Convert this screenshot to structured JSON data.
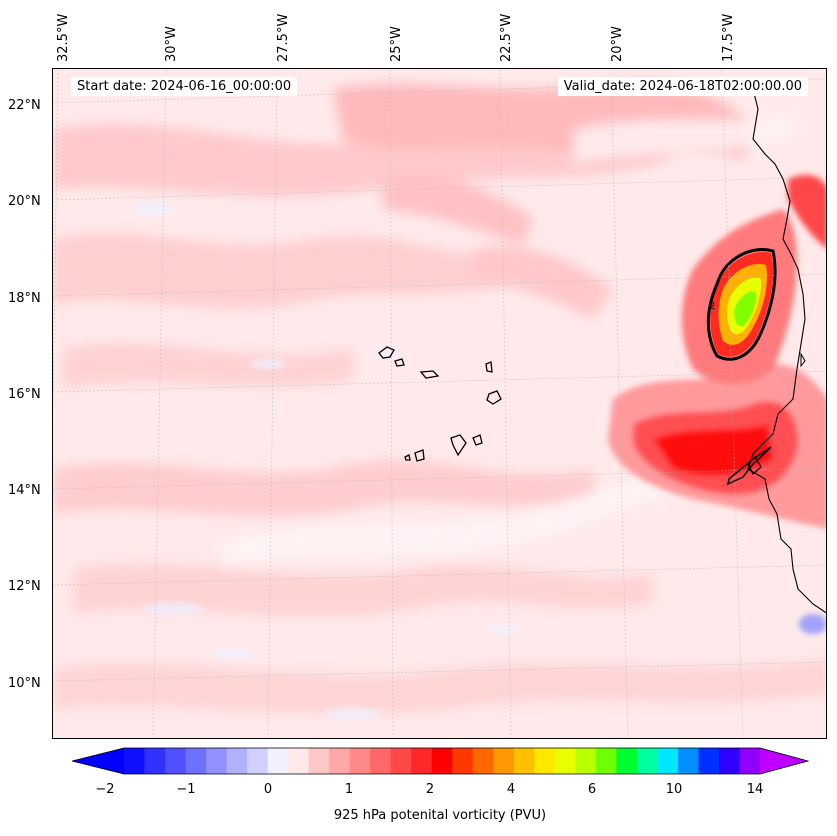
{
  "map": {
    "lon_labels": [
      "32.5°W",
      "30°W",
      "27.5°W",
      "25°W",
      "22.5°W",
      "20°W",
      "17.5°W"
    ],
    "lat_labels": [
      "22°N",
      "20°N",
      "18°N",
      "16°N",
      "14°N",
      "12°N",
      "10°N"
    ],
    "start_date": "Start date: 2024-06-16_00:00:00",
    "valid_date": "Valid_date: 2024-06-18T02:00:00.00",
    "contour_label": "2"
  },
  "colorbar": {
    "tick_labels": [
      "−2",
      "−1",
      "0",
      "1",
      "2",
      "4",
      "6",
      "10",
      "14"
    ],
    "label": "925 hPa potenital vorticity (PVU)",
    "colors": [
      "#1010ff",
      "#3030ff",
      "#5050ff",
      "#7070ff",
      "#9090ff",
      "#b0b0ff",
      "#d0d0ff",
      "#f0f0ff",
      "#ffe8e8",
      "#ffc8c8",
      "#ffa8a8",
      "#ff8888",
      "#ff6868",
      "#ff4848",
      "#ff2828",
      "#ff0000",
      "#ff3800",
      "#ff6800",
      "#ff9800",
      "#ffc000",
      "#ffe800",
      "#e8ff00",
      "#b8ff00",
      "#70ff00",
      "#00ff30",
      "#00ffa0",
      "#00e8ff",
      "#0090ff",
      "#0030ff",
      "#3000ff",
      "#9000ff"
    ],
    "under_color": "#0000ff",
    "over_color": "#c000ff"
  }
}
